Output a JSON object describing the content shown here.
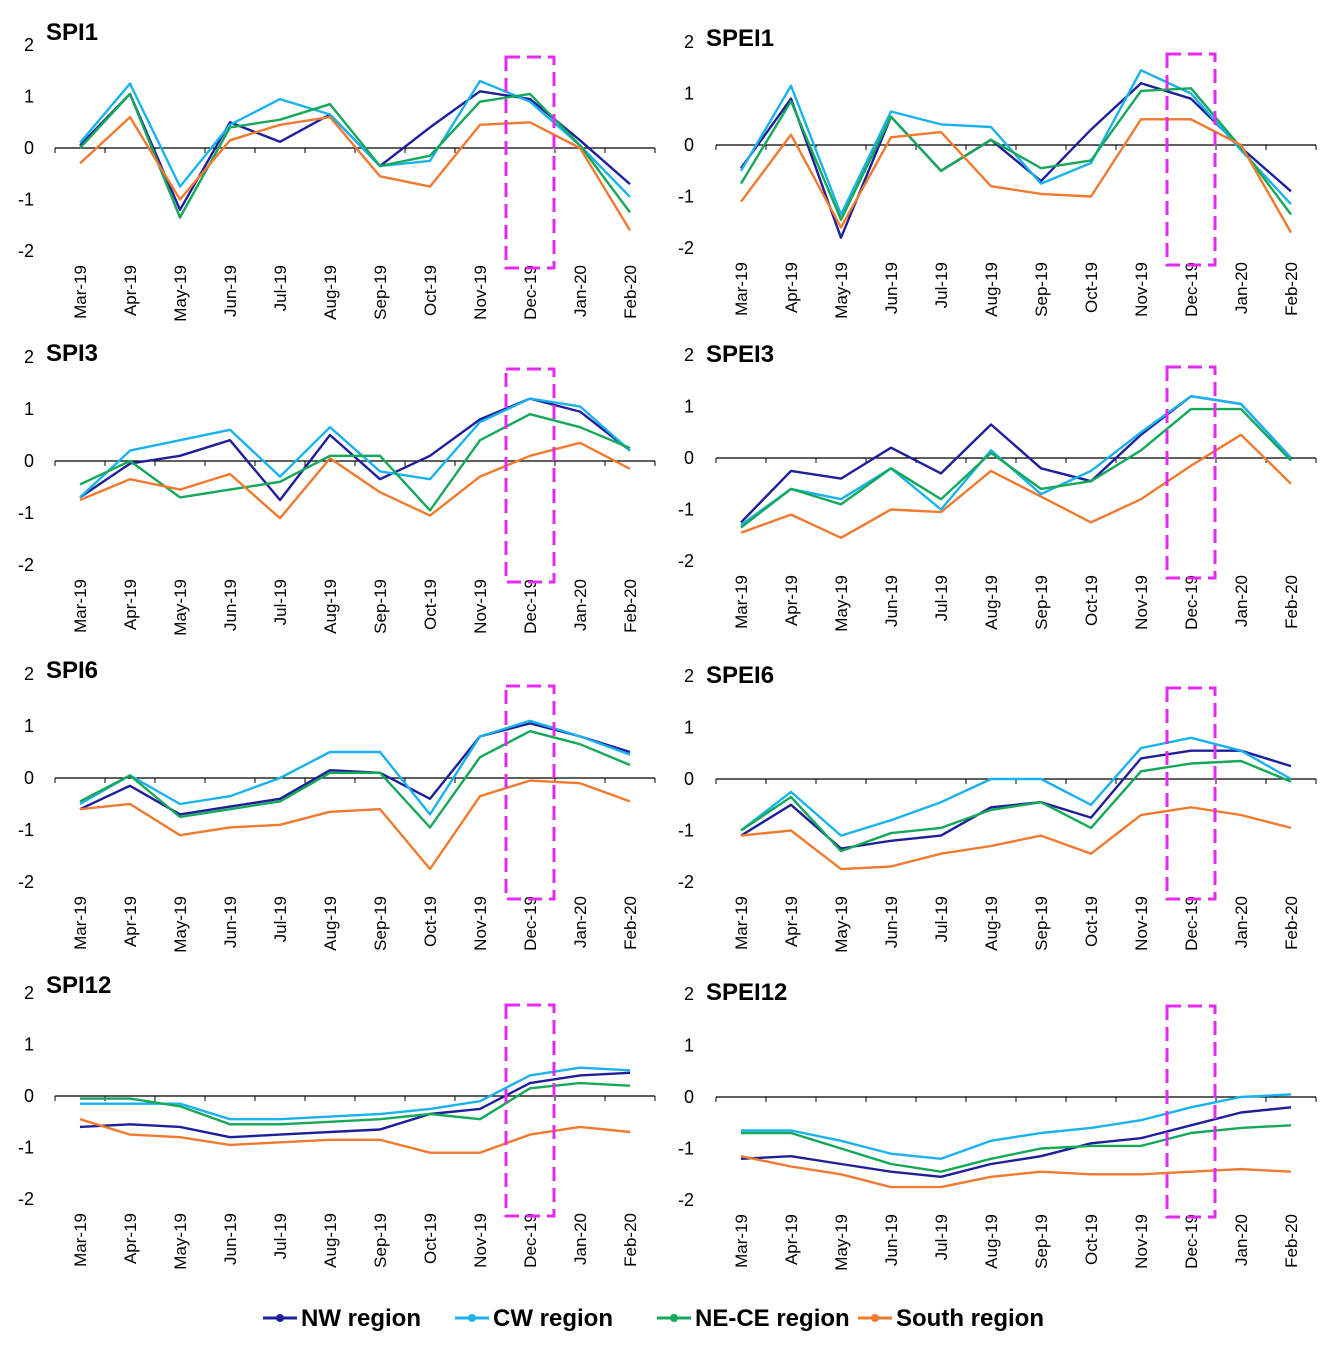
{
  "legend": [
    {
      "name": "NW region",
      "color": "#1f1f9a"
    },
    {
      "name": "CW region",
      "color": "#1ab2ec"
    },
    {
      "name": "NE-CE region",
      "color": "#16a85a"
    },
    {
      "name": "South region",
      "color": "#f07a30"
    }
  ],
  "highlight_color": "#e32bf0",
  "chart_data": [
    {
      "type": "line",
      "title": "SPI1",
      "categories": [
        "Mar-19",
        "Apr-19",
        "May-19",
        "Jun-19",
        "Jul-19",
        "Aug-19",
        "Sep-19",
        "Oct-19",
        "Nov-19",
        "Dec-19",
        "Jan-20",
        "Feb-20"
      ],
      "ylim": [
        -2,
        2
      ],
      "yticks": [
        "2",
        "1",
        "0",
        "-1",
        "-2"
      ],
      "highlight_category": "Dec-19",
      "series": [
        {
          "name": "NW region",
          "values": [
            0.05,
            1.05,
            -1.2,
            0.5,
            0.12,
            0.65,
            -0.35,
            0.4,
            1.1,
            0.95,
            0.15,
            -0.7
          ]
        },
        {
          "name": "CW region",
          "values": [
            0.1,
            1.25,
            -0.75,
            0.45,
            0.95,
            0.65,
            -0.35,
            -0.25,
            1.3,
            0.9,
            0.05,
            -0.95
          ]
        },
        {
          "name": "NE-CE region",
          "values": [
            0.0,
            1.05,
            -1.35,
            0.4,
            0.55,
            0.85,
            -0.35,
            -0.15,
            0.9,
            1.05,
            0.05,
            -1.25
          ]
        },
        {
          "name": "South region",
          "values": [
            -0.3,
            0.6,
            -1.0,
            0.15,
            0.45,
            0.6,
            -0.55,
            -0.75,
            0.45,
            0.5,
            0.0,
            -1.6
          ]
        }
      ]
    },
    {
      "type": "line",
      "title": "SPEI1",
      "categories": [
        "Mar-19",
        "Apr-19",
        "May-19",
        "Jun-19",
        "Jul-19",
        "Aug-19",
        "Sep-19",
        "Oct-19",
        "Nov-19",
        "Dec-19",
        "Jan-20",
        "Feb-20"
      ],
      "ylim": [
        -2,
        2
      ],
      "yticks": [
        "2",
        "1",
        "0",
        "-1",
        "-2"
      ],
      "highlight_category": "Dec-19",
      "series": [
        {
          "name": "NW region",
          "values": [
            -0.45,
            0.9,
            -1.8,
            0.55,
            -0.5,
            0.1,
            -0.7,
            0.3,
            1.2,
            0.9,
            -0.05,
            -0.9
          ]
        },
        {
          "name": "CW region",
          "values": [
            -0.5,
            1.15,
            -1.35,
            0.65,
            0.4,
            0.35,
            -0.75,
            -0.35,
            1.45,
            1.0,
            -0.1,
            -1.15
          ]
        },
        {
          "name": "NE-CE region",
          "values": [
            -0.75,
            0.85,
            -1.45,
            0.55,
            -0.5,
            0.1,
            -0.45,
            -0.3,
            1.05,
            1.1,
            -0.05,
            -1.35
          ]
        },
        {
          "name": "South region",
          "values": [
            -1.1,
            0.2,
            -1.6,
            0.15,
            0.25,
            -0.8,
            -0.95,
            -1.0,
            0.5,
            0.5,
            0.0,
            -1.7
          ]
        }
      ]
    },
    {
      "type": "line",
      "title": "SPI3",
      "categories": [
        "Mar-19",
        "Apr-19",
        "May-19",
        "Jun-19",
        "Jul-19",
        "Aug-19",
        "Sep-19",
        "Oct-19",
        "Nov-19",
        "Dec-19",
        "Jan-20",
        "Feb-20"
      ],
      "ylim": [
        -2,
        2
      ],
      "yticks": [
        "2",
        "1",
        "0",
        "-1",
        "-2"
      ],
      "highlight_category": "Dec-19",
      "series": [
        {
          "name": "NW region",
          "values": [
            -0.7,
            -0.05,
            0.1,
            0.4,
            -0.75,
            0.5,
            -0.35,
            0.1,
            0.8,
            1.2,
            0.95,
            0.2
          ]
        },
        {
          "name": "CW region",
          "values": [
            -0.7,
            0.2,
            0.4,
            0.6,
            -0.3,
            0.65,
            -0.2,
            -0.35,
            0.75,
            1.2,
            1.05,
            0.2
          ]
        },
        {
          "name": "NE-CE region",
          "values": [
            -0.45,
            0.0,
            -0.7,
            -0.55,
            -0.4,
            0.1,
            0.1,
            -0.95,
            0.4,
            0.9,
            0.65,
            0.25
          ]
        },
        {
          "name": "South region",
          "values": [
            -0.75,
            -0.35,
            -0.55,
            -0.25,
            -1.1,
            0.05,
            -0.6,
            -1.05,
            -0.3,
            0.1,
            0.35,
            -0.15
          ]
        }
      ]
    },
    {
      "type": "line",
      "title": "SPEI3",
      "categories": [
        "Mar-19",
        "Apr-19",
        "May-19",
        "Jun-19",
        "Jul-19",
        "Aug-19",
        "Sep-19",
        "Oct-19",
        "Nov-19",
        "Dec-19",
        "Jan-20",
        "Feb-20"
      ],
      "ylim": [
        -2,
        2
      ],
      "yticks": [
        "2",
        "1",
        "0",
        "-1",
        "-2"
      ],
      "highlight_category": "Dec-19",
      "series": [
        {
          "name": "NW region",
          "values": [
            -1.25,
            -0.25,
            -0.4,
            0.2,
            -0.3,
            0.65,
            -0.2,
            -0.45,
            0.45,
            1.2,
            1.05,
            0.0
          ]
        },
        {
          "name": "CW region",
          "values": [
            -1.3,
            -0.6,
            -0.8,
            -0.2,
            -1.0,
            0.15,
            -0.7,
            -0.25,
            0.5,
            1.2,
            1.05,
            0.0
          ]
        },
        {
          "name": "NE-CE region",
          "values": [
            -1.35,
            -0.6,
            -0.9,
            -0.2,
            -0.8,
            0.1,
            -0.6,
            -0.45,
            0.15,
            0.95,
            0.95,
            -0.05
          ]
        },
        {
          "name": "South region",
          "values": [
            -1.45,
            -1.1,
            -1.55,
            -1.0,
            -1.05,
            -0.25,
            -0.75,
            -1.25,
            -0.8,
            -0.15,
            0.45,
            -0.5
          ]
        }
      ]
    },
    {
      "type": "line",
      "title": "SPI6",
      "categories": [
        "Mar-19",
        "Apr-19",
        "May-19",
        "Jun-19",
        "Jul-19",
        "Aug-19",
        "Sep-19",
        "Oct-19",
        "Nov-19",
        "Dec-19",
        "Jan-20",
        "Feb-20"
      ],
      "ylim": [
        -2,
        2
      ],
      "yticks": [
        "2",
        "1",
        "0",
        "-1",
        "-2"
      ],
      "highlight_category": "Dec-19",
      "series": [
        {
          "name": "NW region",
          "values": [
            -0.6,
            -0.15,
            -0.7,
            -0.55,
            -0.4,
            0.15,
            0.1,
            -0.4,
            0.8,
            1.05,
            0.8,
            0.5
          ]
        },
        {
          "name": "CW region",
          "values": [
            -0.5,
            0.05,
            -0.5,
            -0.35,
            0.0,
            0.5,
            0.5,
            -0.7,
            0.8,
            1.1,
            0.8,
            0.45
          ]
        },
        {
          "name": "NE-CE region",
          "values": [
            -0.45,
            0.05,
            -0.75,
            -0.6,
            -0.45,
            0.1,
            0.1,
            -0.95,
            0.4,
            0.9,
            0.65,
            0.25
          ]
        },
        {
          "name": "South region",
          "values": [
            -0.6,
            -0.5,
            -1.1,
            -0.95,
            -0.9,
            -0.65,
            -0.6,
            -1.75,
            -0.35,
            -0.05,
            -0.1,
            -0.45
          ]
        }
      ]
    },
    {
      "type": "line",
      "title": "SPEI6",
      "categories": [
        "Mar-19",
        "Apr-19",
        "May-19",
        "Jun-19",
        "Jul-19",
        "Aug-19",
        "Sep-19",
        "Oct-19",
        "Nov-19",
        "Dec-19",
        "Jan-20",
        "Feb-20"
      ],
      "ylim": [
        -2,
        2
      ],
      "yticks": [
        "2",
        "1",
        "0",
        "-1",
        "-2"
      ],
      "highlight_category": "Dec-19",
      "series": [
        {
          "name": "NW region",
          "values": [
            -1.1,
            -0.5,
            -1.35,
            -1.2,
            -1.1,
            -0.55,
            -0.45,
            -0.75,
            0.4,
            0.55,
            0.55,
            0.25
          ]
        },
        {
          "name": "CW region",
          "values": [
            -1.0,
            -0.25,
            -1.1,
            -0.8,
            -0.45,
            0.0,
            0.0,
            -0.5,
            0.6,
            0.8,
            0.55,
            0.0
          ]
        },
        {
          "name": "NE-CE region",
          "values": [
            -1.0,
            -0.35,
            -1.4,
            -1.05,
            -0.95,
            -0.6,
            -0.45,
            -0.95,
            0.15,
            0.3,
            0.35,
            -0.05
          ]
        },
        {
          "name": "South region",
          "values": [
            -1.1,
            -1.0,
            -1.75,
            -1.7,
            -1.45,
            -1.3,
            -1.1,
            -1.45,
            -0.7,
            -0.55,
            -0.7,
            -0.95
          ]
        }
      ]
    },
    {
      "type": "line",
      "title": "SPI12",
      "categories": [
        "Mar-19",
        "Apr-19",
        "May-19",
        "Jun-19",
        "Jul-19",
        "Aug-19",
        "Sep-19",
        "Oct-19",
        "Nov-19",
        "Dec-19",
        "Jan-20",
        "Feb-20"
      ],
      "ylim": [
        -2,
        2
      ],
      "yticks": [
        "2",
        "1",
        "0",
        "-1",
        "-2"
      ],
      "highlight_category": "Dec-19",
      "series": [
        {
          "name": "NW region",
          "values": [
            -0.6,
            -0.55,
            -0.6,
            -0.8,
            -0.75,
            -0.7,
            -0.65,
            -0.35,
            -0.25,
            0.25,
            0.4,
            0.45
          ]
        },
        {
          "name": "CW region",
          "values": [
            -0.15,
            -0.15,
            -0.15,
            -0.45,
            -0.45,
            -0.4,
            -0.35,
            -0.25,
            -0.1,
            0.4,
            0.55,
            0.5
          ]
        },
        {
          "name": "NE-CE region",
          "values": [
            -0.05,
            -0.05,
            -0.2,
            -0.55,
            -0.55,
            -0.5,
            -0.45,
            -0.35,
            -0.45,
            0.15,
            0.25,
            0.2
          ]
        },
        {
          "name": "South region",
          "values": [
            -0.45,
            -0.75,
            -0.8,
            -0.95,
            -0.9,
            -0.85,
            -0.85,
            -1.1,
            -1.1,
            -0.75,
            -0.6,
            -0.7
          ]
        }
      ]
    },
    {
      "type": "line",
      "title": "SPEI12",
      "categories": [
        "Mar-19",
        "Apr-19",
        "May-19",
        "Jun-19",
        "Jul-19",
        "Aug-19",
        "Sep-19",
        "Oct-19",
        "Nov-19",
        "Dec-19",
        "Jan-20",
        "Feb-20"
      ],
      "ylim": [
        -2,
        2
      ],
      "yticks": [
        "2",
        "1",
        "0",
        "-1",
        "-2"
      ],
      "highlight_category": "Dec-19",
      "series": [
        {
          "name": "NW region",
          "values": [
            -1.2,
            -1.15,
            -1.3,
            -1.45,
            -1.55,
            -1.3,
            -1.15,
            -0.9,
            -0.8,
            -0.55,
            -0.3,
            -0.2
          ]
        },
        {
          "name": "CW region",
          "values": [
            -0.65,
            -0.65,
            -0.85,
            -1.1,
            -1.2,
            -0.85,
            -0.7,
            -0.6,
            -0.45,
            -0.2,
            0.0,
            0.05
          ]
        },
        {
          "name": "NE-CE region",
          "values": [
            -0.7,
            -0.7,
            -1.0,
            -1.3,
            -1.45,
            -1.2,
            -1.0,
            -0.95,
            -0.95,
            -0.7,
            -0.6,
            -0.55
          ]
        },
        {
          "name": "South region",
          "values": [
            -1.15,
            -1.35,
            -1.5,
            -1.75,
            -1.75,
            -1.55,
            -1.45,
            -1.5,
            -1.5,
            -1.45,
            -1.4,
            -1.45
          ]
        }
      ]
    }
  ]
}
